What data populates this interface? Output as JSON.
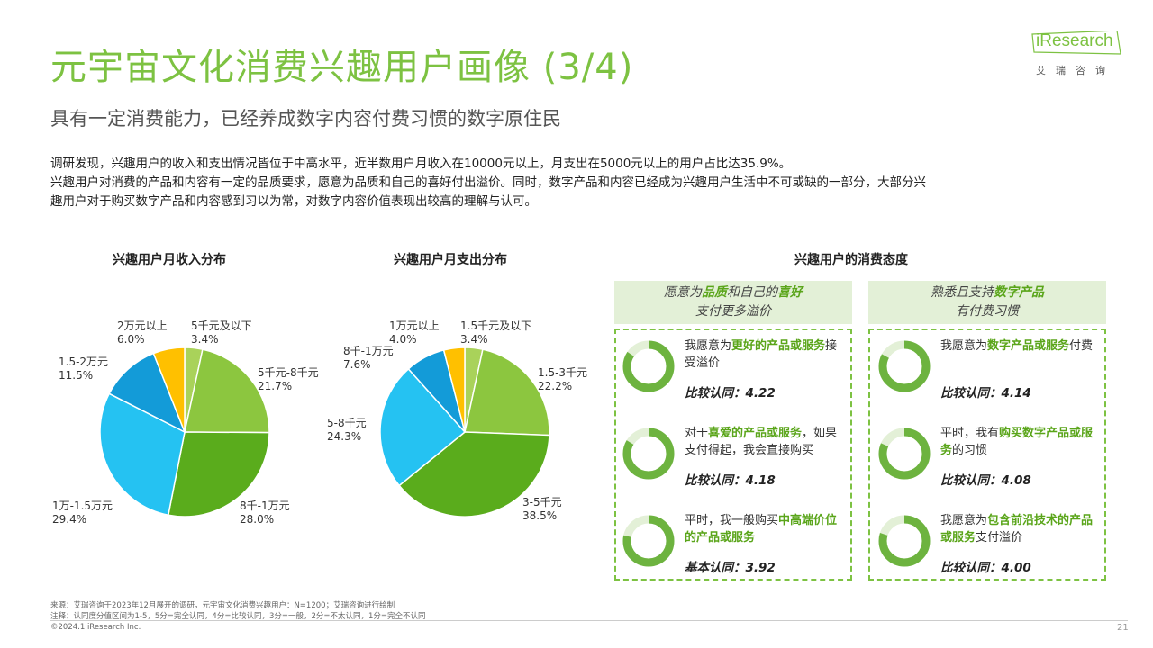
{
  "page": {
    "title": "元宇宙文化消费兴趣用户画像 (3/4)",
    "subtitle": "具有一定消费能力，已经养成数字内容付费习惯的数字原住民",
    "body_lines": [
      "调研发现，兴趣用户的收入和支出情况皆位于中高水平，近半数用户月收入在10000元以上，月支出在5000元以上的用户占比达35.9%。",
      "兴趣用户对消费的产品和内容有一定的品质要求，愿意为品质和自己的喜好付出溢价。同时，数字产品和内容已经成为兴趣用户生活中不可或缺的一部分，大部分兴",
      "趣用户对于购买数字产品和内容感到习以为常，对数字内容价值表现出较高的理解与认可。"
    ]
  },
  "logo": {
    "text": "iResearch",
    "cn": "艾瑞咨询"
  },
  "colors": {
    "accent": "#7dc242",
    "dark_green": "#5aa51a",
    "panel_bg": "#e3f0d7"
  },
  "chart_data": [
    {
      "type": "pie",
      "title": "兴趣用户月收入分布",
      "categories": [
        "5千元及以下",
        "5千元-8千元",
        "8千-1万元",
        "1万-1.5万元",
        "1.5-2万元",
        "2万元以上"
      ],
      "values": [
        3.4,
        21.7,
        28.0,
        29.4,
        11.5,
        6.0
      ],
      "labels": [
        "5千元及以下\n3.4%",
        "5千元-8千元\n21.7%",
        "8千-1万元\n28.0%",
        "1万-1.5万元\n29.4%",
        "1.5-2万元\n11.5%",
        "2万元以上\n6.0%"
      ],
      "colors": [
        "#a9d25a",
        "#8cc63f",
        "#5aac1c",
        "#25c2f2",
        "#139bd8",
        "#ffc000"
      ]
    },
    {
      "type": "pie",
      "title": "兴趣用户月支出分布",
      "categories": [
        "1.5千元及以下",
        "1.5-3千元",
        "3-5千元",
        "5-8千元",
        "8千-1万元",
        "1万元以上"
      ],
      "values": [
        3.4,
        22.2,
        38.5,
        24.3,
        7.6,
        4.0
      ],
      "labels": [
        "1.5千元及以下\n3.4%",
        "1.5-3千元\n22.2%",
        "3-5千元\n38.5%",
        "5-8千元\n24.3%",
        "8千-1万元\n7.6%",
        "1万元以上\n4.0%"
      ],
      "colors": [
        "#a9d25a",
        "#8cc63f",
        "#5aac1c",
        "#25c2f2",
        "#139bd8",
        "#ffc000"
      ]
    }
  ],
  "attitude": {
    "title": "兴趣用户的消费态度",
    "panels": [
      {
        "head_l1_pre": "愿意为",
        "head_l1_b1": "品质",
        "head_l1_mid": "和自己的",
        "head_l1_b2": "喜好",
        "head_l2": "支付更多溢价",
        "items": [
          {
            "pre": "我愿意为",
            "bold": "更好的产品或服务",
            "post": "接受溢价",
            "score": "比较认同：4.22",
            "value": 4.22
          },
          {
            "pre": "对于",
            "bold": "喜爱的产品或服务",
            "post": "，如果支付得起，我会直接购买",
            "score": "比较认同：4.18",
            "value": 4.18
          },
          {
            "pre": "平时，我一般购买",
            "bold": "中高端价位的产品或服务",
            "post": "",
            "score": "基本认同：3.92",
            "value": 3.92
          }
        ]
      },
      {
        "head_l1_pre": "熟悉且支持",
        "head_l1_b1": "数字产品",
        "head_l1_mid": "",
        "head_l1_b2": "",
        "head_l2": "有付费习惯",
        "items": [
          {
            "pre": "我愿意为",
            "bold": "数字产品或服务",
            "post": "付费",
            "score": "比较认同：4.14",
            "value": 4.14
          },
          {
            "pre": "平时，我有",
            "bold": "购买数字产品或服务",
            "post": "的习惯",
            "score": "比较认同：4.08",
            "value": 4.08
          },
          {
            "pre": "我愿意为",
            "bold": "包含前沿技术的产品或服务",
            "post": "支付溢价",
            "score": "比较认同：4.00",
            "value": 4.0
          }
        ]
      }
    ]
  },
  "footer": {
    "source": "来源：艾瑞咨询于2023年12月展开的调研，元宇宙文化消费兴趣用户：N=1200；艾瑞咨询进行绘制",
    "note": "注释：认同度分值区间为1-5，5分=完全认同，4分=比较认同，3分=一般，2分=不太认同，1分=完全不认同",
    "copyright": "©2024.1 iResearch Inc.",
    "page_number": "21"
  }
}
